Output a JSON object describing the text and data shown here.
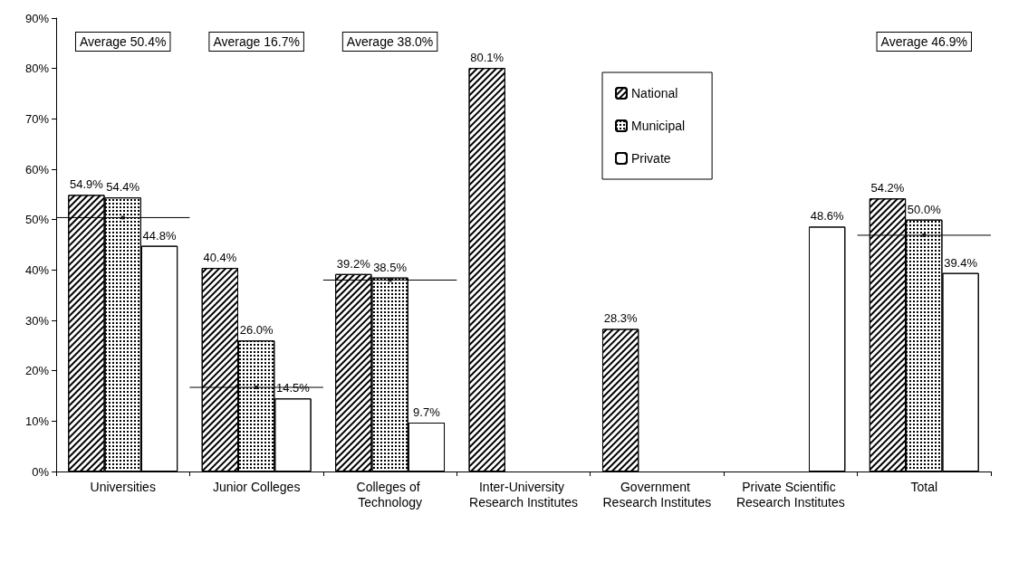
{
  "chart_data": {
    "type": "bar",
    "categories": [
      "Universities",
      "Junior Colleges",
      "Colleges of Technology",
      "Inter-University Research Institutes",
      "Government Research Institutes",
      "Private Scientific Research Institutes",
      "Total"
    ],
    "series": [
      {
        "name": "National",
        "color": "#ffffff",
        "values": [
          54.9,
          40.4,
          39.2,
          80.1,
          28.3,
          null,
          54.2
        ],
        "value_labels": [
          "54.9%",
          "40.4%",
          "39.2%",
          "80.1%",
          "28.3%",
          null,
          "54.2%"
        ]
      },
      {
        "name": "Municipal",
        "color": "#ffffff",
        "values": [
          54.4,
          26.0,
          38.5,
          null,
          null,
          null,
          50.0
        ],
        "value_labels": [
          "54.4%",
          "26.0%",
          "38.5%",
          null,
          null,
          null,
          "50.0%"
        ]
      },
      {
        "name": "Private",
        "color": "#ffffff",
        "values": [
          44.8,
          14.5,
          9.7,
          null,
          null,
          48.6,
          39.4
        ],
        "value_labels": [
          "44.8%",
          "14.5%",
          "9.7%",
          null,
          null,
          "48.6%",
          "39.4%"
        ]
      },
      {
        "type": "scatter",
        "color": "#000000",
        "x": [
          "Universities",
          "Junior Colleges",
          "Colleges of Technology",
          "Total"
        ],
        "values": [
          50.4,
          16.7,
          38.0,
          46.9
        ],
        "marker": "square",
        "line_style": "solid"
      }
    ],
    "ylim": [
      0,
      90
    ],
    "yticks": [
      {
        "value": 0,
        "label": "0%"
      },
      {
        "value": 10,
        "label": "10%"
      },
      {
        "value": 20,
        "label": "20%"
      },
      {
        "value": 30,
        "label": "30%"
      },
      {
        "value": 40,
        "label": "40%"
      },
      {
        "value": 50,
        "label": "50%"
      },
      {
        "value": 60,
        "label": "60%"
      },
      {
        "value": 70,
        "label": "70%"
      },
      {
        "value": 80,
        "label": "80%"
      },
      {
        "value": 90,
        "label": "90%"
      }
    ],
    "annotations": [
      "Average 50.4%",
      "Average 16.7%",
      "Average 38.0%",
      "Average 46.9%"
    ],
    "legend": "top",
    "grid": false
  }
}
